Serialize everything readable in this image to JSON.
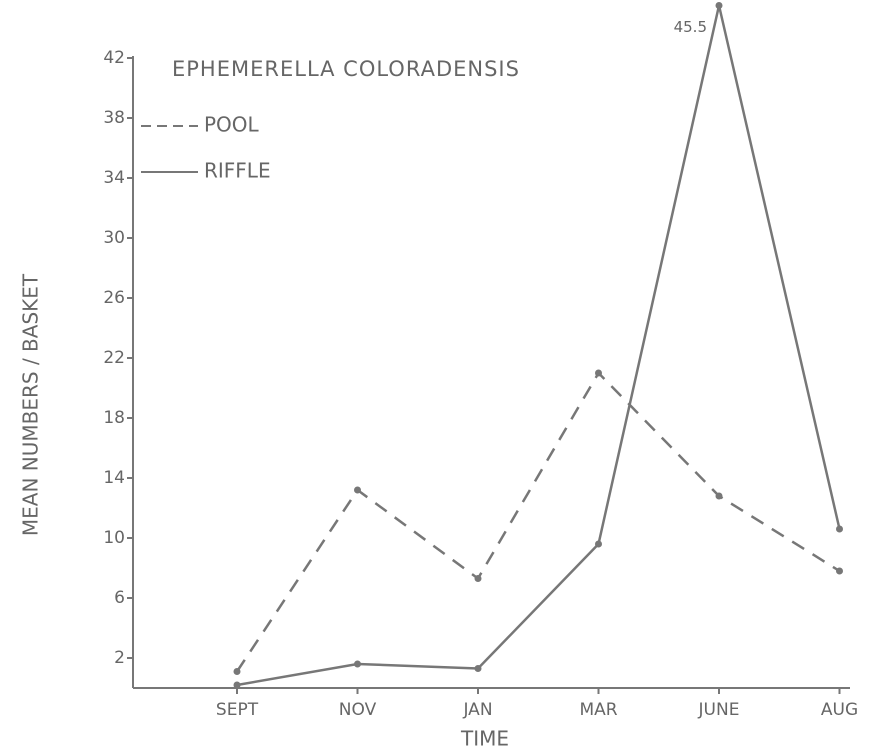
{
  "chart_data": {
    "type": "line",
    "title": "EPHEMERELLA COLORADENSIS",
    "x_label": "TIME",
    "y_label": "MEAN NUMBERS / BASKET",
    "categories": [
      "SEPT",
      "NOV",
      "JAN",
      "MAR",
      "JUNE",
      "AUG"
    ],
    "series": [
      {
        "name": "POOL",
        "color": "#777777",
        "line_style": "dashed",
        "values": [
          1.1,
          13.2,
          7.3,
          21,
          12.8,
          7.8
        ]
      },
      {
        "name": "RIFFLE",
        "color": "#777777",
        "line_style": "solid",
        "values": [
          0.2,
          1.6,
          1.3,
          9.6,
          45.5,
          10.6
        ],
        "value_labels": [
          null,
          null,
          null,
          null,
          "45.5",
          null
        ]
      }
    ],
    "ylim": [
      0,
      46
    ],
    "yticks": [
      2,
      6,
      10,
      14,
      18,
      22,
      26,
      30,
      34,
      38,
      42
    ],
    "legend": "upper left",
    "grid": false
  }
}
